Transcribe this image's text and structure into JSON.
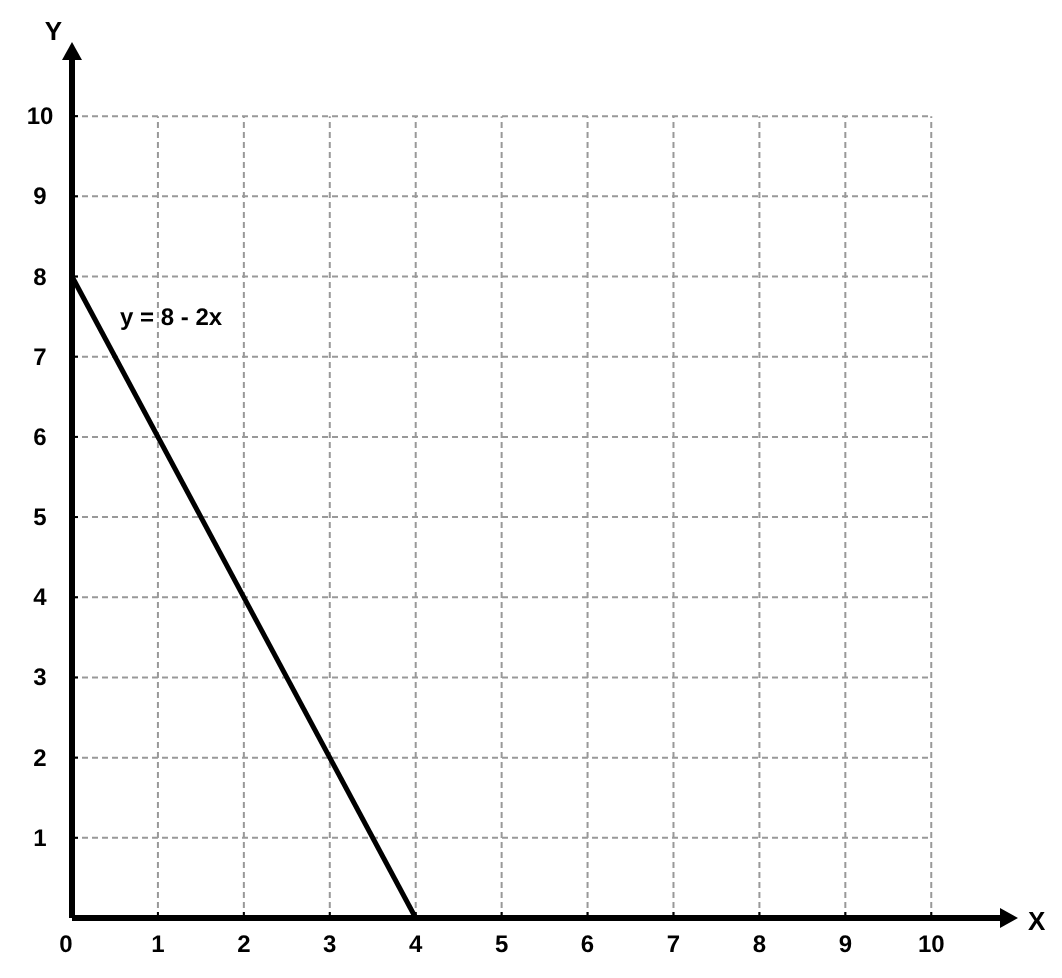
{
  "chart_data": {
    "type": "line",
    "xlabel": "X",
    "ylabel": "Y",
    "x": [
      0,
      4
    ],
    "series": [
      {
        "name": "y = 8 - 2x",
        "color": "#000000",
        "values": [
          8,
          0
        ]
      }
    ],
    "xlim": [
      0,
      10.8
    ],
    "ylim": [
      0,
      10.7
    ],
    "xticks": [
      0,
      1,
      2,
      3,
      4,
      5,
      6,
      7,
      8,
      9,
      10
    ],
    "yticks": [
      {
        "value": 0,
        "label": null
      },
      1,
      2,
      3,
      4,
      5,
      6,
      7,
      8,
      9,
      10
    ],
    "grid": true,
    "marker": "none",
    "line_style": "solid"
  }
}
